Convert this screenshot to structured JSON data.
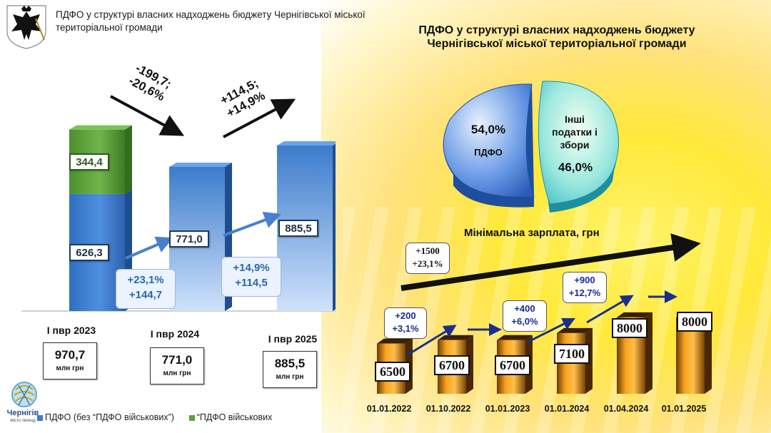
{
  "header": {
    "title": "ПДФО у структурі власних надходжень бюджету Чернігівської міської територіальної громади"
  },
  "crest_icon": "coat-of-arms-eagle-icon",
  "logo": {
    "name": "Чернігів",
    "tagline": "місто легенд"
  },
  "colors": {
    "blue": "#3b7bc9",
    "green": "#5aa33a",
    "orange": "#f29a1a",
    "arrow_blue": "#1b2f8a"
  },
  "chart_data": [
    {
      "type": "bar",
      "title": "",
      "categories": [
        "І пвр 2023",
        "І пвр 2024",
        "І пвр 2025"
      ],
      "series": [
        {
          "name": "ПДФО (без “ПДФО військових”)",
          "values": [
            626.3,
            771.0,
            885.5
          ],
          "labels": [
            "626,3",
            "771,0",
            "885,5"
          ]
        },
        {
          "name": "“ПДФО військових",
          "values": [
            344.4,
            0,
            0
          ],
          "labels": [
            "344,4",
            "",
            ""
          ]
        }
      ],
      "totals": [
        {
          "value": "970,7",
          "unit": "млн грн"
        },
        {
          "value": "771,0",
          "unit": "млн грн"
        },
        {
          "value": "885,5",
          "unit": "млн грн"
        }
      ],
      "changes": [
        {
          "text_line1": "-199,7;",
          "text_line2": "-20,6%"
        },
        {
          "text_line1": "+114,5;",
          "text_line2": "+14,9%"
        }
      ],
      "callouts": [
        {
          "line1": "+23,1%",
          "line2": "+144,7"
        },
        {
          "line1": "+14,9%",
          "line2": "+114,5"
        }
      ],
      "ylim": [
        0,
        1000
      ]
    },
    {
      "type": "pie",
      "title": "ПДФО у структурі власних надходжень бюджету Чернігівської міської територіальної громади",
      "slices": [
        {
          "label": "ПДФО",
          "value": 54.0,
          "display": "54,0%"
        },
        {
          "label": "Інші податки і збори",
          "value": 46.0,
          "display": "46,0%"
        }
      ]
    },
    {
      "type": "bar",
      "title": "Мінімальна зарплата, грн",
      "categories": [
        "01.01.2022",
        "01.10.2022",
        "01.01.2023",
        "01.01.2024",
        "01.04.2024",
        "01.01.2025"
      ],
      "values": [
        6500,
        6700,
        6700,
        7100,
        8000,
        8000
      ],
      "labels": [
        "6500",
        "6700",
        "6700",
        "7100",
        "8000",
        "8000"
      ],
      "overall_change": {
        "line1": "+1500",
        "line2": "+23,1%"
      },
      "callouts": [
        {
          "line1": "+200",
          "line2": "+3,1%"
        },
        {
          "line1": "+400",
          "line2": "+6,0%"
        },
        {
          "line1": "+900",
          "line2": "+12,7%"
        }
      ],
      "ylim": [
        0,
        8000
      ]
    }
  ]
}
